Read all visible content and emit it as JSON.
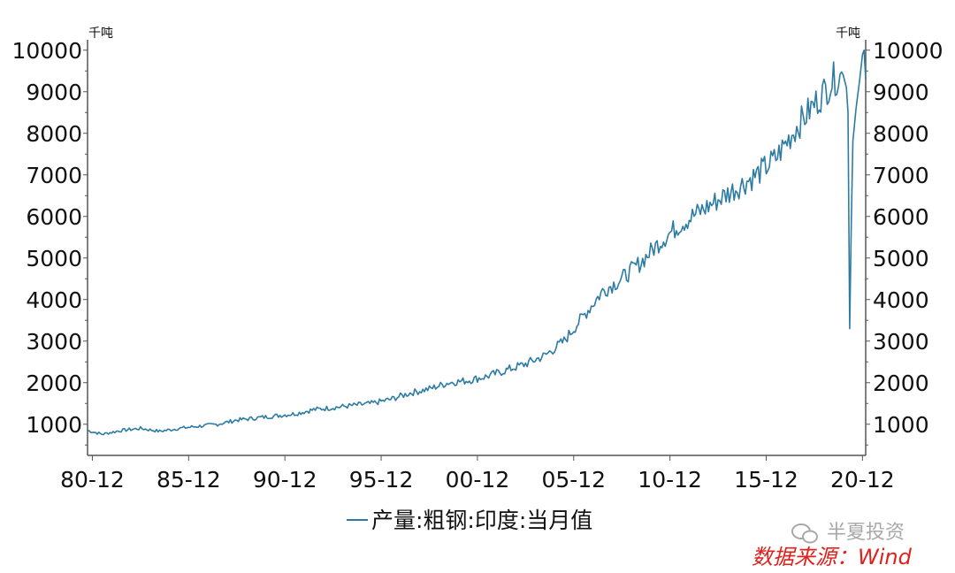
{
  "chart_data": {
    "type": "line",
    "title": "",
    "unit_left": "千吨",
    "unit_right": "千吨",
    "y_ticks": [
      1000,
      2000,
      3000,
      4000,
      5000,
      6000,
      7000,
      8000,
      9000,
      10000
    ],
    "ylim": [
      250,
      10250
    ],
    "x_ticks": [
      "80-12",
      "85-12",
      "90-12",
      "95-12",
      "00-12",
      "05-12",
      "10-12",
      "15-12",
      "20-12"
    ],
    "x_range": [
      "1980-09",
      "2021-02"
    ],
    "series": [
      {
        "name": "产量:粗钢:印度:当月值",
        "color": "#2c7ba3",
        "points": [
          [
            "1980-09",
            850
          ],
          [
            "1981-06",
            760
          ],
          [
            "1982-06",
            850
          ],
          [
            "1983-06",
            900
          ],
          [
            "1984-06",
            830
          ],
          [
            "1985-06",
            900
          ],
          [
            "1986-06",
            950
          ],
          [
            "1987-06",
            1000
          ],
          [
            "1988-06",
            1100
          ],
          [
            "1989-06",
            1150
          ],
          [
            "1990-06",
            1200
          ],
          [
            "1991-06",
            1250
          ],
          [
            "1992-06",
            1350
          ],
          [
            "1993-06",
            1400
          ],
          [
            "1994-06",
            1450
          ],
          [
            "1995-06",
            1500
          ],
          [
            "1996-06",
            1600
          ],
          [
            "1997-06",
            1750
          ],
          [
            "1998-06",
            1850
          ],
          [
            "1999-06",
            2000
          ],
          [
            "2000-06",
            2050
          ],
          [
            "2001-06",
            2150
          ],
          [
            "2002-06",
            2300
          ],
          [
            "2003-06",
            2450
          ],
          [
            "2004-06",
            2650
          ],
          [
            "2005-06",
            3000
          ],
          [
            "2006-06",
            3600
          ],
          [
            "2007-06",
            4200
          ],
          [
            "2008-06",
            4500
          ],
          [
            "2009-06",
            4900
          ],
          [
            "2010-06",
            5400
          ],
          [
            "2011-06",
            5800
          ],
          [
            "2012-06",
            6100
          ],
          [
            "2013-06",
            6400
          ],
          [
            "2014-06",
            6700
          ],
          [
            "2015-06",
            7000
          ],
          [
            "2016-06",
            7400
          ],
          [
            "2017-06",
            8100
          ],
          [
            "2018-06",
            8700
          ],
          [
            "2019-06",
            9300
          ],
          [
            "2019-12",
            9400
          ],
          [
            "2020-02",
            9100
          ],
          [
            "2020-03",
            8500
          ],
          [
            "2020-04",
            3300
          ],
          [
            "2020-05",
            5800
          ],
          [
            "2020-06",
            7800
          ],
          [
            "2020-08",
            8600
          ],
          [
            "2020-10",
            9200
          ],
          [
            "2020-12",
            9900
          ],
          [
            "2021-01",
            10000
          ],
          [
            "2021-02",
            9300
          ]
        ]
      }
    ],
    "legend_position": "bottom-center",
    "source": "数据来源：Wind"
  },
  "watermark": "半夏投资"
}
